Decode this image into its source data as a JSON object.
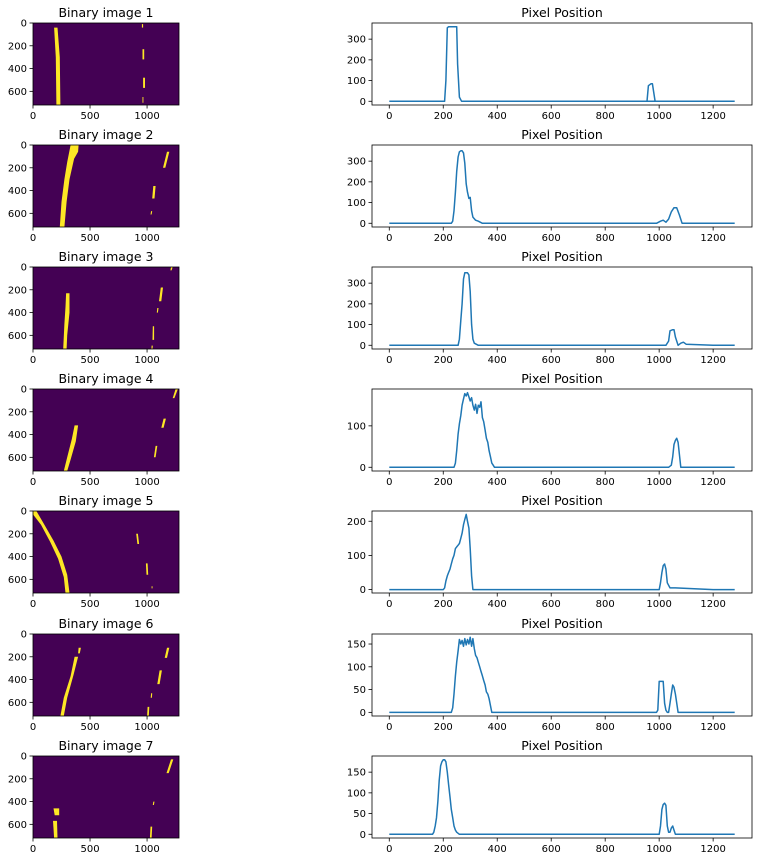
{
  "chart_data": [
    {
      "type": "heatmap",
      "title": "Binary image 1",
      "xlabel": "",
      "ylabel": "",
      "x_ticks": [
        0,
        500,
        1000
      ],
      "y_ticks": [
        0,
        200,
        400,
        600
      ],
      "xlim": [
        0,
        1280
      ],
      "ylim": [
        720,
        0
      ],
      "colors": {
        "background": "#440154",
        "foreground": "#fde725"
      }
    },
    {
      "type": "line",
      "title": "Pixel Position",
      "xlabel": "",
      "ylabel": "",
      "x_ticks": [
        0,
        200,
        400,
        600,
        800,
        1000,
        1200
      ],
      "y_ticks": [
        0,
        100,
        200,
        300
      ],
      "xlim": [
        -64,
        1344
      ],
      "ylim": [
        -18,
        378
      ],
      "series": [
        {
          "x": [
            0,
            200,
            205,
            210,
            215,
            220,
            225,
            250,
            253,
            260,
            268,
            300,
            1200,
            1280
          ],
          "y": [
            0,
            0,
            0,
            100,
            355,
            360,
            360,
            360,
            180,
            20,
            0,
            0,
            0,
            0
          ]
        },
        {
          "x": [
            900,
            945,
            955,
            960,
            970,
            975,
            985,
            1000
          ],
          "y": [
            0,
            0,
            0,
            75,
            85,
            85,
            0,
            0
          ]
        }
      ]
    },
    {
      "type": "heatmap",
      "title": "Binary image 2",
      "xlabel": "",
      "ylabel": "",
      "x_ticks": [
        0,
        500,
        1000
      ],
      "y_ticks": [
        0,
        200,
        400,
        600
      ],
      "xlim": [
        0,
        1280
      ],
      "ylim": [
        720,
        0
      ],
      "colors": {
        "background": "#440154",
        "foreground": "#fde725"
      }
    },
    {
      "type": "line",
      "title": "Pixel Position",
      "xlabel": "",
      "ylabel": "",
      "x_ticks": [
        0,
        200,
        400,
        600,
        800,
        1000,
        1200
      ],
      "y_ticks": [
        0,
        100,
        200,
        300
      ],
      "xlim": [
        -64,
        1344
      ],
      "ylim": [
        -18,
        378
      ],
      "series": [
        {
          "x": [
            0,
            220,
            230,
            235,
            240,
            245,
            250,
            255,
            260,
            265,
            270,
            275,
            280,
            285,
            290,
            295,
            300,
            305,
            310,
            320,
            330,
            345,
            400,
            990,
            1005,
            1015,
            1025,
            1035,
            1045,
            1055,
            1065,
            1075,
            1085,
            1200,
            1280
          ],
          "y": [
            0,
            0,
            0,
            10,
            60,
            150,
            250,
            320,
            345,
            350,
            350,
            340,
            290,
            190,
            150,
            120,
            125,
            60,
            30,
            15,
            10,
            0,
            0,
            0,
            10,
            15,
            5,
            20,
            55,
            75,
            75,
            40,
            0,
            0,
            0
          ]
        }
      ]
    },
    {
      "type": "heatmap",
      "title": "Binary image 3",
      "xlabel": "",
      "ylabel": "",
      "x_ticks": [
        0,
        500,
        1000
      ],
      "y_ticks": [
        0,
        200,
        400,
        600
      ],
      "xlim": [
        0,
        1280
      ],
      "ylim": [
        720,
        0
      ],
      "colors": {
        "background": "#440154",
        "foreground": "#fde725"
      }
    },
    {
      "type": "line",
      "title": "Pixel Position",
      "xlabel": "",
      "ylabel": "",
      "x_ticks": [
        0,
        200,
        400,
        600,
        800,
        1000,
        1200
      ],
      "y_ticks": [
        0,
        100,
        200,
        300
      ],
      "xlim": [
        -64,
        1344
      ],
      "ylim": [
        -18,
        378
      ],
      "series": [
        {
          "x": [
            0,
            250,
            255,
            260,
            265,
            270,
            275,
            280,
            290,
            295,
            300,
            305,
            310,
            315,
            330,
            1000,
            1025,
            1035,
            1040,
            1050,
            1055,
            1060,
            1070,
            1080,
            1090,
            1100,
            1200,
            1280
          ],
          "y": [
            0,
            0,
            0,
            30,
            120,
            200,
            320,
            350,
            350,
            340,
            260,
            100,
            30,
            10,
            0,
            0,
            0,
            20,
            70,
            75,
            75,
            40,
            0,
            10,
            15,
            5,
            0,
            0
          ]
        }
      ]
    },
    {
      "type": "heatmap",
      "title": "Binary image 4",
      "xlabel": "",
      "ylabel": "",
      "x_ticks": [
        0,
        500,
        1000
      ],
      "y_ticks": [
        0,
        200,
        400,
        600
      ],
      "xlim": [
        0,
        1280
      ],
      "ylim": [
        720,
        0
      ],
      "colors": {
        "background": "#440154",
        "foreground": "#fde725"
      }
    },
    {
      "type": "line",
      "title": "Pixel Position",
      "xlabel": "",
      "ylabel": "",
      "x_ticks": [
        0,
        200,
        400,
        600,
        800,
        1000,
        1200
      ],
      "y_ticks": [
        0,
        100
      ],
      "xlim": [
        -64,
        1344
      ],
      "ylim": [
        -9,
        189
      ],
      "series": [
        {
          "x": [
            0,
            235,
            240,
            245,
            250,
            255,
            260,
            265,
            270,
            275,
            280,
            285,
            290,
            295,
            300,
            305,
            310,
            315,
            320,
            325,
            330,
            335,
            340,
            345,
            350,
            355,
            360,
            365,
            370,
            375,
            380,
            385,
            390,
            400,
            1000,
            1035,
            1045,
            1050,
            1055,
            1060,
            1065,
            1070,
            1080,
            1200,
            1280
          ],
          "y": [
            0,
            0,
            0,
            10,
            40,
            80,
            105,
            125,
            150,
            165,
            178,
            172,
            180,
            170,
            160,
            168,
            150,
            138,
            152,
            130,
            150,
            145,
            158,
            120,
            110,
            90,
            70,
            60,
            40,
            25,
            10,
            5,
            0,
            0,
            0,
            0,
            5,
            25,
            55,
            65,
            70,
            60,
            0,
            0,
            0
          ]
        }
      ]
    },
    {
      "type": "heatmap",
      "title": "Binary image 5",
      "xlabel": "",
      "ylabel": "",
      "x_ticks": [
        0,
        500,
        1000
      ],
      "y_ticks": [
        0,
        200,
        400,
        600
      ],
      "xlim": [
        0,
        1280
      ],
      "ylim": [
        720,
        0
      ],
      "colors": {
        "background": "#440154",
        "foreground": "#fde725"
      }
    },
    {
      "type": "line",
      "title": "Pixel Position",
      "xlabel": "",
      "ylabel": "",
      "x_ticks": [
        0,
        200,
        400,
        600,
        800,
        1000,
        1200
      ],
      "y_ticks": [
        0,
        100,
        200
      ],
      "xlim": [
        -64,
        1344
      ],
      "ylim": [
        -10,
        230
      ],
      "series": [
        {
          "x": [
            0,
            200,
            205,
            210,
            215,
            220,
            225,
            230,
            235,
            240,
            245,
            250,
            255,
            260,
            265,
            270,
            275,
            280,
            285,
            290,
            295,
            300,
            305,
            310,
            1000,
            1005,
            1010,
            1015,
            1020,
            1025,
            1030,
            1040,
            1050,
            1060,
            1200,
            1280
          ],
          "y": [
            0,
            0,
            5,
            25,
            40,
            50,
            60,
            75,
            90,
            100,
            120,
            125,
            130,
            135,
            150,
            165,
            190,
            205,
            220,
            200,
            180,
            120,
            40,
            0,
            0,
            20,
            50,
            70,
            75,
            60,
            20,
            5,
            5,
            5,
            0,
            0
          ]
        }
      ]
    },
    {
      "type": "heatmap",
      "title": "Binary image 6",
      "xlabel": "",
      "ylabel": "",
      "x_ticks": [
        0,
        500,
        1000
      ],
      "y_ticks": [
        0,
        200,
        400,
        600
      ],
      "xlim": [
        0,
        1280
      ],
      "ylim": [
        720,
        0
      ],
      "colors": {
        "background": "#440154",
        "foreground": "#fde725"
      }
    },
    {
      "type": "line",
      "title": "Pixel Position",
      "xlabel": "",
      "ylabel": "",
      "x_ticks": [
        0,
        200,
        400,
        600,
        800,
        1000,
        1200
      ],
      "y_ticks": [
        0,
        50,
        100,
        150
      ],
      "xlim": [
        -64,
        1344
      ],
      "ylim": [
        -8,
        172
      ],
      "series": [
        {
          "x": [
            0,
            230,
            235,
            240,
            245,
            250,
            255,
            260,
            265,
            270,
            275,
            280,
            285,
            290,
            295,
            300,
            305,
            310,
            315,
            320,
            325,
            330,
            335,
            340,
            345,
            350,
            355,
            360,
            365,
            370,
            380,
            990,
            995,
            1000,
            1005,
            1010,
            1015,
            1020,
            1025,
            1030,
            1035,
            1040,
            1045,
            1050,
            1055,
            1060,
            1070,
            1200,
            1280
          ],
          "y": [
            0,
            0,
            10,
            40,
            80,
            110,
            135,
            160,
            150,
            158,
            145,
            162,
            148,
            160,
            150,
            165,
            145,
            162,
            140,
            125,
            120,
            110,
            100,
            90,
            80,
            70,
            60,
            45,
            40,
            30,
            0,
            0,
            5,
            68,
            68,
            68,
            68,
            20,
            5,
            0,
            0,
            20,
            40,
            60,
            55,
            40,
            0,
            0,
            0
          ]
        }
      ]
    },
    {
      "type": "heatmap",
      "title": "Binary image 7",
      "xlabel": "",
      "ylabel": "",
      "x_ticks": [
        0,
        500,
        1000
      ],
      "y_ticks": [
        0,
        200,
        400,
        600
      ],
      "xlim": [
        0,
        1280
      ],
      "ylim": [
        720,
        0
      ],
      "colors": {
        "background": "#440154",
        "foreground": "#fde725"
      }
    },
    {
      "type": "line",
      "title": "Pixel Position",
      "xlabel": "",
      "ylabel": "",
      "x_ticks": [
        0,
        200,
        400,
        600,
        800,
        1000,
        1200
      ],
      "y_ticks": [
        0,
        50,
        100,
        150
      ],
      "xlim": [
        -64,
        1344
      ],
      "ylim": [
        -9,
        189
      ],
      "series": [
        {
          "x": [
            0,
            160,
            165,
            170,
            175,
            180,
            185,
            190,
            195,
            200,
            205,
            210,
            215,
            220,
            225,
            230,
            235,
            240,
            245,
            250,
            260,
            1000,
            1005,
            1010,
            1015,
            1020,
            1025,
            1030,
            1035,
            1040,
            1045,
            1050,
            1055,
            1060,
            1200,
            1280
          ],
          "y": [
            0,
            0,
            5,
            20,
            40,
            80,
            130,
            165,
            175,
            180,
            180,
            175,
            150,
            120,
            90,
            60,
            40,
            20,
            10,
            5,
            0,
            0,
            20,
            60,
            72,
            75,
            70,
            20,
            5,
            5,
            15,
            20,
            10,
            0,
            0,
            0
          ]
        }
      ]
    }
  ]
}
